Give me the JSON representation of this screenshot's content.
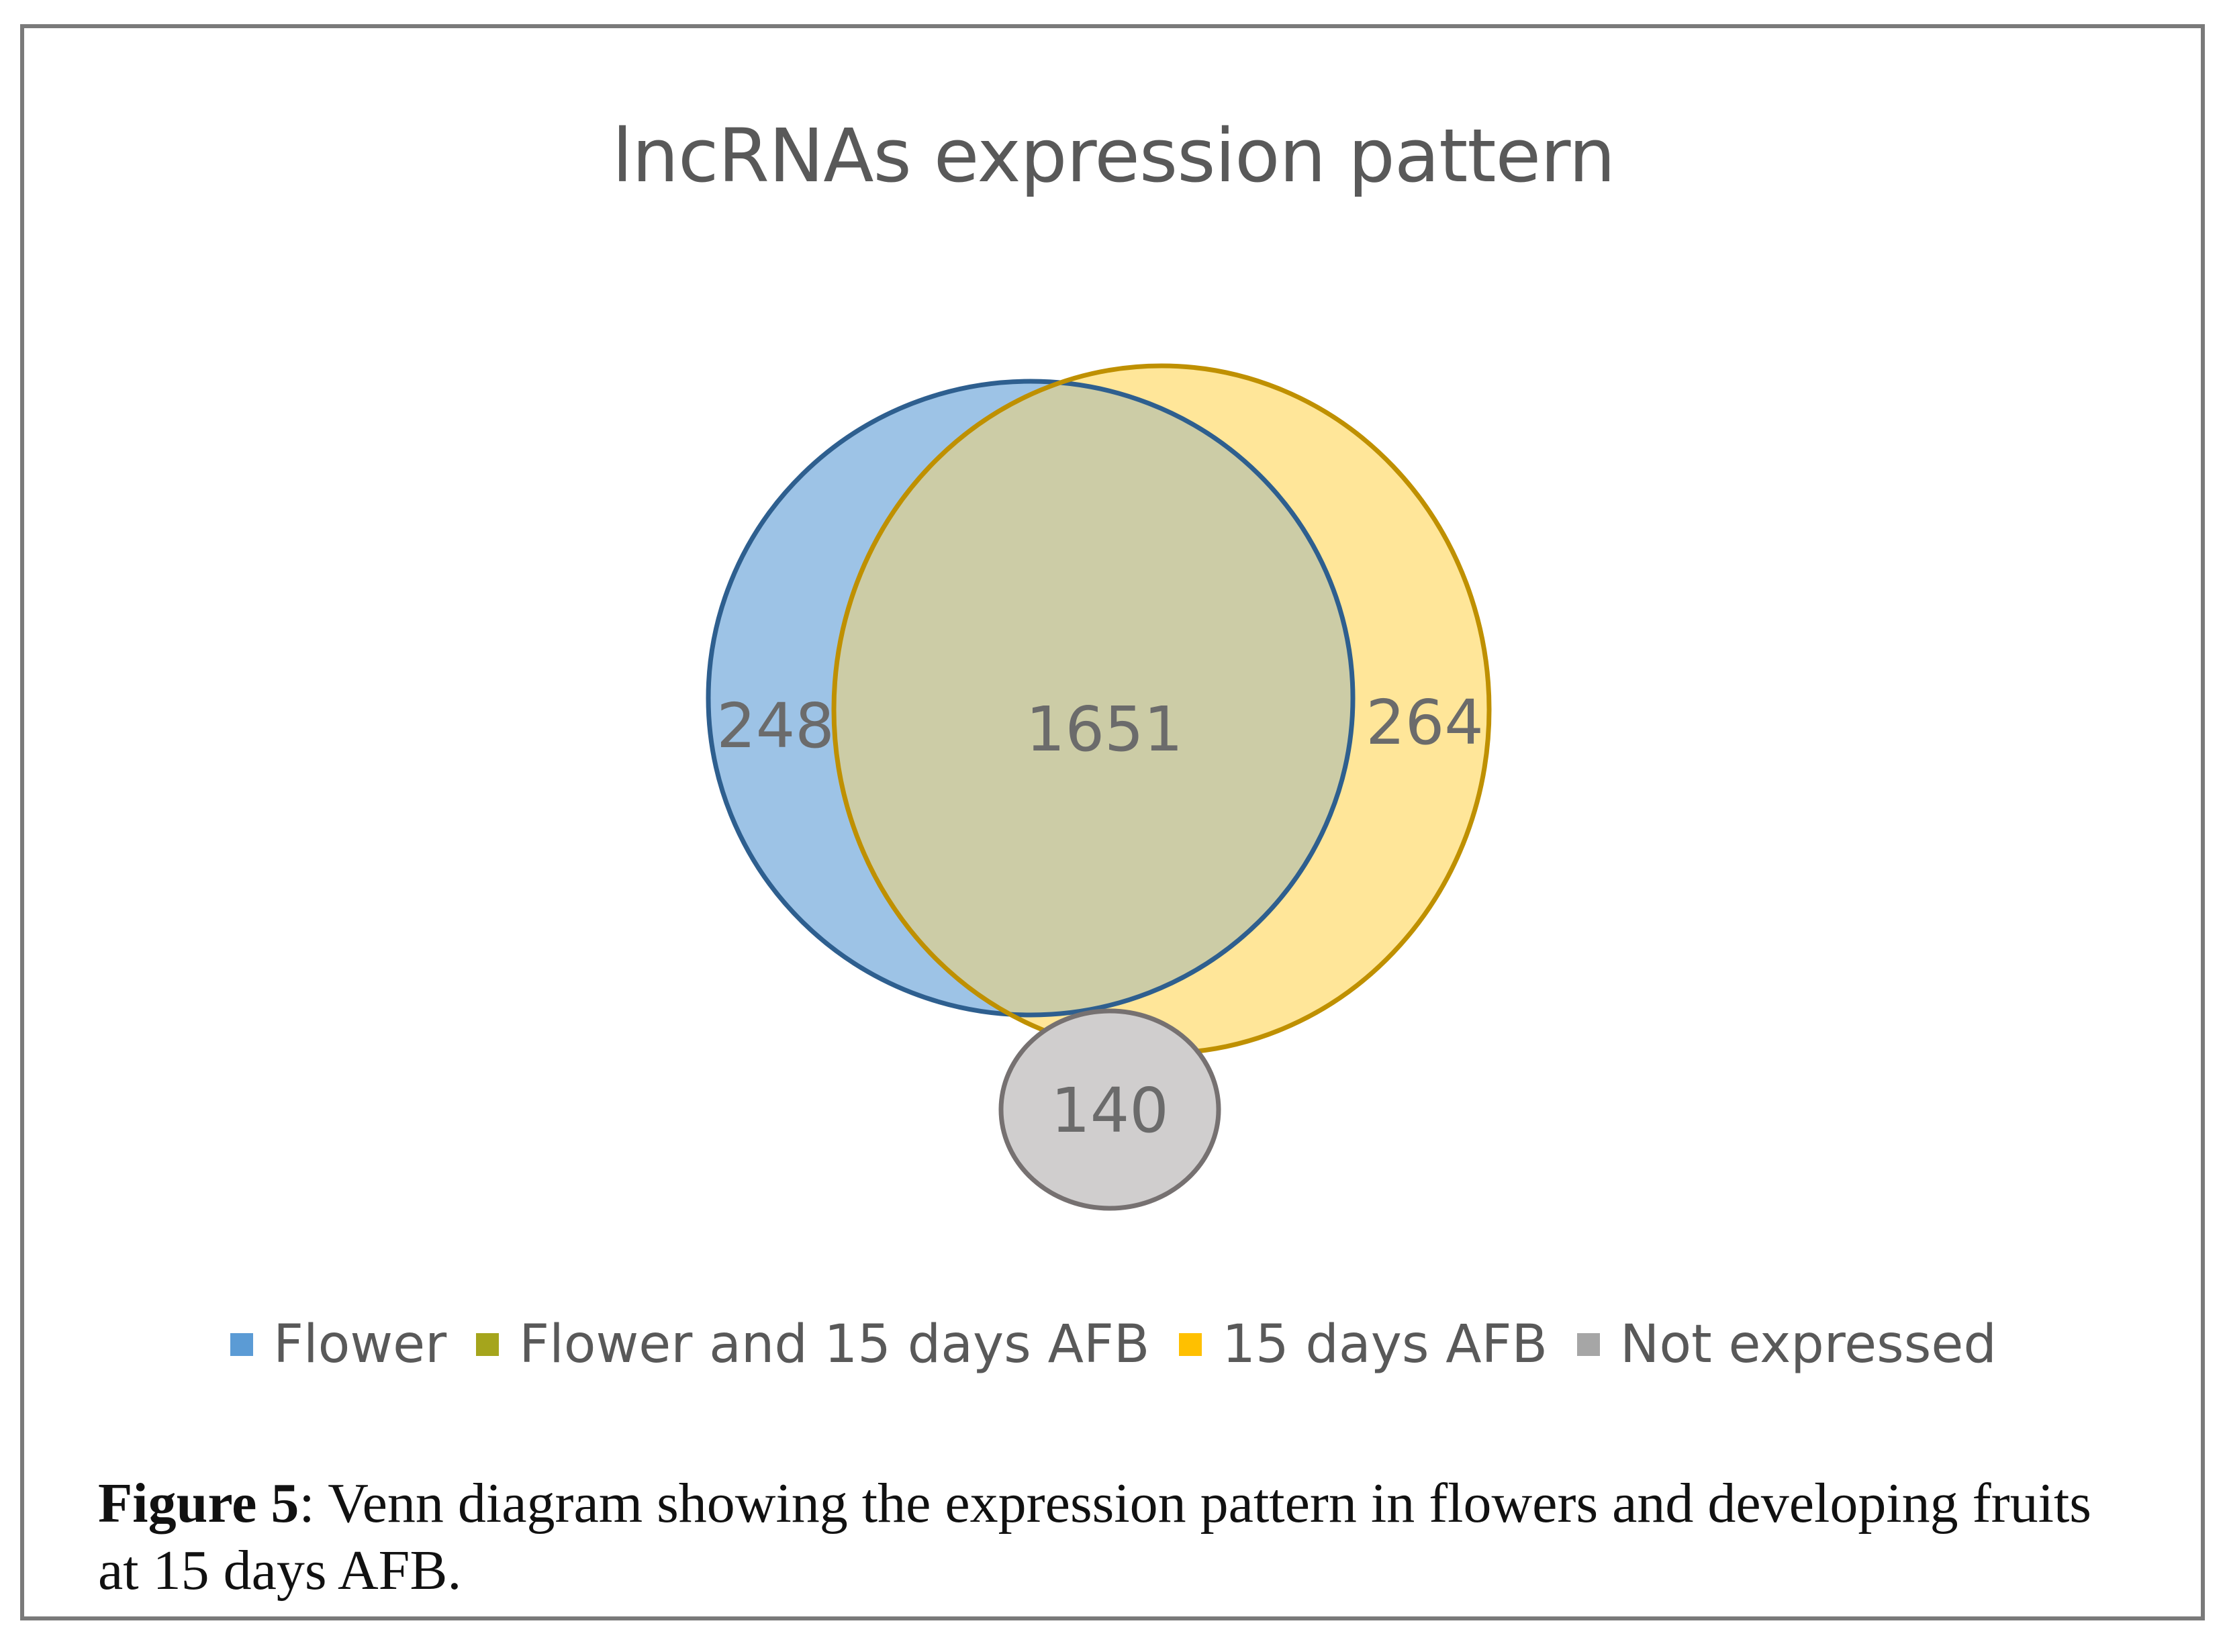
{
  "title": "lncRNAs expression pattern",
  "regions": {
    "flower_only": "248",
    "both": "1651",
    "fruit_only": "264",
    "not_expressed": "140"
  },
  "legend": [
    {
      "label": "Flower",
      "color": "#5b9bd5"
    },
    {
      "label": "Flower and 15 days AFB",
      "color": "#a5a51c"
    },
    {
      "label": "15 days AFB",
      "color": "#ffc000"
    },
    {
      "label": "Not expressed",
      "color": "#a6a6a6"
    }
  ],
  "colors": {
    "flower_fill": "#9dc3e6",
    "flower_stroke": "#2e5f8f",
    "fruit_fill": "#ffe699",
    "fruit_stroke": "#bf9000",
    "overlap_fill": "#cccca6",
    "not_expressed_fill": "#d0cece",
    "not_expressed_stroke": "#767171"
  },
  "caption": {
    "label": "Figure 5",
    "text": ": Venn diagram showing the expression pattern in flowers and developing fruits at 15 days AFB."
  }
}
